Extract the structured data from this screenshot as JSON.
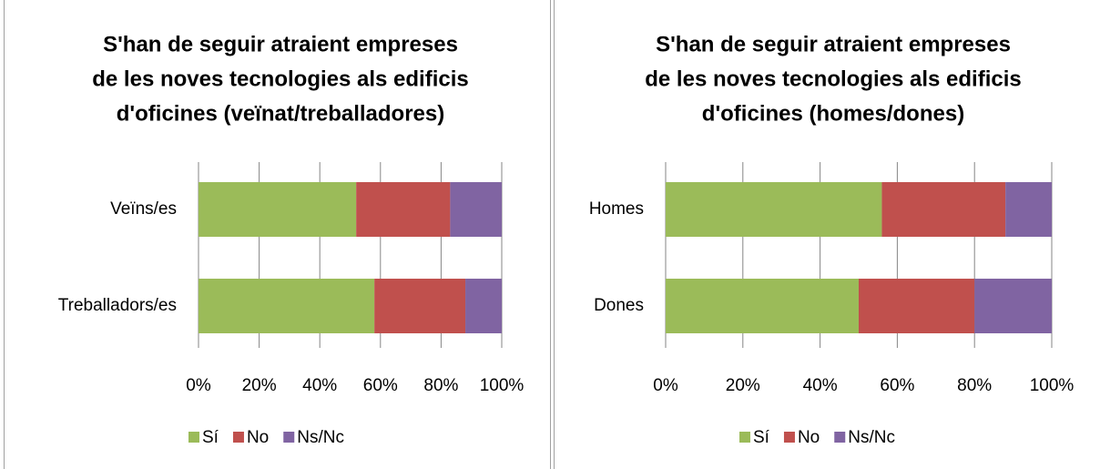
{
  "chart_data": [
    {
      "type": "stacked-bar-horizontal",
      "title": [
        "S'han de seguir atraient empreses",
        "de les noves tecnologies als edificis",
        "d'oficines (veïnat/treballadores)"
      ],
      "categories": [
        "Veïns/es",
        "Treballadors/es"
      ],
      "series": [
        {
          "name": "Sí",
          "color": "#9bbb59",
          "values": [
            52,
            58
          ]
        },
        {
          "name": "No",
          "color": "#c0504d",
          "values": [
            31,
            30
          ]
        },
        {
          "name": "Ns/Nc",
          "color": "#8064a2",
          "values": [
            17,
            12
          ]
        }
      ],
      "xlim": [
        0,
        100
      ],
      "xticks": [
        {
          "value": 0,
          "label": "0%"
        },
        {
          "value": 20,
          "label": "20%"
        },
        {
          "value": 40,
          "label": "40%"
        },
        {
          "value": 60,
          "label": "60%"
        },
        {
          "value": 80,
          "label": "80%"
        },
        {
          "value": 100,
          "label": "100%"
        }
      ],
      "grid": true,
      "legend": "bottom"
    },
    {
      "type": "stacked-bar-horizontal",
      "title": [
        "S'han de seguir atraient empreses",
        "de les noves tecnologies als edificis",
        "d'oficines (homes/dones)"
      ],
      "categories": [
        "Homes",
        "Dones"
      ],
      "series": [
        {
          "name": "Sí",
          "color": "#9bbb59",
          "values": [
            56,
            50
          ]
        },
        {
          "name": "No",
          "color": "#c0504d",
          "values": [
            32,
            30
          ]
        },
        {
          "name": "Ns/Nc",
          "color": "#8064a2",
          "values": [
            12,
            20
          ]
        }
      ],
      "xlim": [
        0,
        100
      ],
      "xticks": [
        {
          "value": 0,
          "label": "0%"
        },
        {
          "value": 20,
          "label": "20%"
        },
        {
          "value": 40,
          "label": "40%"
        },
        {
          "value": 60,
          "label": "60%"
        },
        {
          "value": 80,
          "label": "80%"
        },
        {
          "value": 100,
          "label": "100%"
        }
      ],
      "grid": true,
      "legend": "bottom"
    }
  ]
}
